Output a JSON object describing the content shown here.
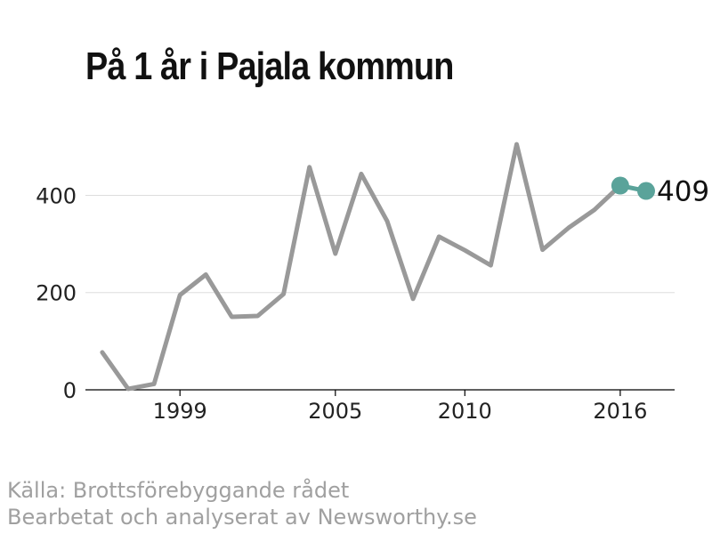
{
  "title": "På 1 år i Pajala kommun",
  "source_line1": "Källa: Brottsförebyggande rådet",
  "source_line2": "Bearbetat och analyserat av Newsworthy.se",
  "colors": {
    "line": "#999999",
    "highlight": "#5aa39a",
    "axis": "#000000",
    "grid": "#dddddd",
    "source": "#a0a0a0"
  },
  "chart_data": {
    "type": "line",
    "title": "På 1 år i Pajala kommun",
    "xlabel": "",
    "ylabel": "",
    "x": [
      1996,
      1997,
      1998,
      1999,
      2000,
      2001,
      2002,
      2003,
      2004,
      2005,
      2006,
      2007,
      2008,
      2009,
      2010,
      2011,
      2012,
      2013,
      2014,
      2015,
      2016,
      2017
    ],
    "series": [
      {
        "values": [
          77,
          2,
          12,
          195,
          237,
          150,
          152,
          197,
          458,
          280,
          444,
          347,
          187,
          315,
          287,
          256,
          505,
          288,
          333,
          370,
          420,
          409
        ]
      }
    ],
    "highlight_points": [
      2016,
      2017
    ],
    "end_label": "409",
    "xticks": [
      1999,
      2005,
      2010,
      2016
    ],
    "xtick_labels": [
      "1999",
      "2005",
      "2010",
      "2016"
    ],
    "yticks": [
      0,
      200,
      400
    ],
    "ytick_labels": [
      "0",
      "200",
      "400"
    ],
    "xlim": [
      1995.35,
      2018.1
    ],
    "ylim": [
      0,
      550
    ],
    "grid": true,
    "legend": "none"
  }
}
